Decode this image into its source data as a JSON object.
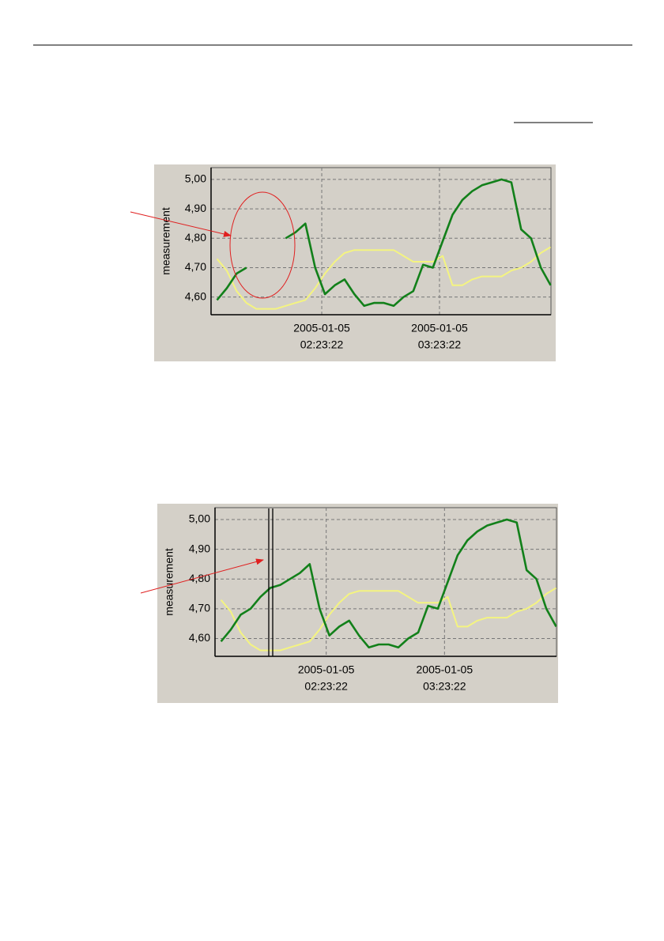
{
  "chart_data": [
    {
      "type": "line",
      "y_label": "measurement",
      "x": [
        "2005-01-05 01:30:00",
        "2005-01-05 01:35:00",
        "2005-01-05 01:40:00",
        "2005-01-05 01:45:00",
        "2005-01-05 01:50:00",
        "2005-01-05 01:55:00",
        "2005-01-05 02:00:00",
        "2005-01-05 02:05:00",
        "2005-01-05 02:10:00",
        "2005-01-05 02:15:00",
        "2005-01-05 02:20:00",
        "2005-01-05 02:25:00",
        "2005-01-05 02:30:00",
        "2005-01-05 02:35:00",
        "2005-01-05 02:40:00",
        "2005-01-05 02:45:00",
        "2005-01-05 02:50:00",
        "2005-01-05 02:55:00",
        "2005-01-05 03:00:00",
        "2005-01-05 03:05:00",
        "2005-01-05 03:10:00",
        "2005-01-05 03:15:00",
        "2005-01-05 03:20:00",
        "2005-01-05 03:25:00",
        "2005-01-05 03:30:00",
        "2005-01-05 03:35:00",
        "2005-01-05 03:40:00",
        "2005-01-05 03:45:00",
        "2005-01-05 03:50:00",
        "2005-01-05 03:55:00",
        "2005-01-05 04:00:00",
        "2005-01-05 04:05:00",
        "2005-01-05 04:10:00",
        "2005-01-05 04:15:00",
        "2005-01-05 04:20:00"
      ],
      "xlim": [
        "2005-01-05 01:26:58",
        "2005-01-05 04:20:10"
      ],
      "xticks": [
        {
          "value": "2005-01-05 02:23:22",
          "label": [
            "2005-01-05",
            "02:23:22"
          ]
        },
        {
          "value": "2005-01-05 03:23:22",
          "label": [
            "2005-01-05",
            "03:23:22"
          ]
        }
      ],
      "ylim": [
        4.54,
        5.04
      ],
      "yticks": [
        {
          "value": 4.6,
          "label": "4,60"
        },
        {
          "value": 4.7,
          "label": "4,70"
        },
        {
          "value": 4.8,
          "label": "4,80"
        },
        {
          "value": 4.9,
          "label": "4,90"
        },
        {
          "value": 5.0,
          "label": "5,00"
        }
      ],
      "grid": true,
      "series": [
        {
          "color": "#f4f480",
          "values": [
            4.73,
            4.69,
            4.62,
            4.58,
            4.56,
            4.56,
            4.56,
            4.57,
            4.58,
            4.59,
            4.63,
            4.68,
            4.72,
            4.75,
            4.76,
            4.76,
            4.76,
            4.76,
            4.76,
            4.74,
            4.72,
            4.72,
            4.72,
            4.74,
            4.64,
            4.64,
            4.66,
            4.67,
            4.67,
            4.67,
            4.69,
            4.7,
            4.72,
            4.75,
            4.77
          ]
        },
        {
          "color": "#12801a",
          "values": [
            4.59,
            4.63,
            4.68,
            4.7,
            null,
            null,
            null,
            4.8,
            4.82,
            4.85,
            4.7,
            4.61,
            4.64,
            4.66,
            4.61,
            4.57,
            4.58,
            4.58,
            4.57,
            4.6,
            4.62,
            4.71,
            4.7,
            4.79,
            4.88,
            4.93,
            4.96,
            4.98,
            4.99,
            5.0,
            4.99,
            4.83,
            4.8,
            4.7,
            4.64
          ]
        }
      ]
    },
    {
      "type": "line",
      "y_label": "measurement",
      "x": [
        "2005-01-05 01:30:00",
        "2005-01-05 01:35:00",
        "2005-01-05 01:40:00",
        "2005-01-05 01:45:00",
        "2005-01-05 01:50:00",
        "2005-01-05 01:55:00",
        "2005-01-05 02:00:00",
        "2005-01-05 02:05:00",
        "2005-01-05 02:10:00",
        "2005-01-05 02:15:00",
        "2005-01-05 02:20:00",
        "2005-01-05 02:25:00",
        "2005-01-05 02:30:00",
        "2005-01-05 02:35:00",
        "2005-01-05 02:40:00",
        "2005-01-05 02:45:00",
        "2005-01-05 02:50:00",
        "2005-01-05 02:55:00",
        "2005-01-05 03:00:00",
        "2005-01-05 03:05:00",
        "2005-01-05 03:10:00",
        "2005-01-05 03:15:00",
        "2005-01-05 03:20:00",
        "2005-01-05 03:25:00",
        "2005-01-05 03:30:00",
        "2005-01-05 03:35:00",
        "2005-01-05 03:40:00",
        "2005-01-05 03:45:00",
        "2005-01-05 03:50:00",
        "2005-01-05 03:55:00",
        "2005-01-05 04:00:00",
        "2005-01-05 04:05:00",
        "2005-01-05 04:10:00",
        "2005-01-05 04:15:00",
        "2005-01-05 04:20:00"
      ],
      "xlim": [
        "2005-01-05 01:26:58",
        "2005-01-05 04:20:10"
      ],
      "xticks": [
        {
          "value": "2005-01-05 02:23:22",
          "label": [
            "2005-01-05",
            "02:23:22"
          ]
        },
        {
          "value": "2005-01-05 03:23:22",
          "label": [
            "2005-01-05",
            "03:23:22"
          ]
        }
      ],
      "ylim": [
        4.54,
        5.04
      ],
      "yticks": [
        {
          "value": 4.6,
          "label": "4,60"
        },
        {
          "value": 4.7,
          "label": "4,70"
        },
        {
          "value": 4.8,
          "label": "4,80"
        },
        {
          "value": 4.9,
          "label": "4,90"
        },
        {
          "value": 5.0,
          "label": "5,00"
        }
      ],
      "grid": true,
      "series": [
        {
          "color": "#f4f480",
          "values": [
            4.73,
            4.69,
            4.62,
            4.58,
            4.56,
            4.56,
            4.56,
            4.57,
            4.58,
            4.59,
            4.63,
            4.68,
            4.72,
            4.75,
            4.76,
            4.76,
            4.76,
            4.76,
            4.76,
            4.74,
            4.72,
            4.72,
            4.72,
            4.74,
            4.64,
            4.64,
            4.66,
            4.67,
            4.67,
            4.67,
            4.69,
            4.7,
            4.72,
            4.75,
            4.77
          ]
        },
        {
          "color": "#12801a",
          "values": [
            4.59,
            4.63,
            4.68,
            4.7,
            4.74,
            4.77,
            4.78,
            4.8,
            4.82,
            4.85,
            4.7,
            4.61,
            4.64,
            4.66,
            4.61,
            4.57,
            4.58,
            4.58,
            4.57,
            4.6,
            4.62,
            4.71,
            4.7,
            4.79,
            4.88,
            4.93,
            4.96,
            4.98,
            4.99,
            5.0,
            4.99,
            4.83,
            4.8,
            4.7,
            4.64
          ]
        }
      ]
    }
  ]
}
